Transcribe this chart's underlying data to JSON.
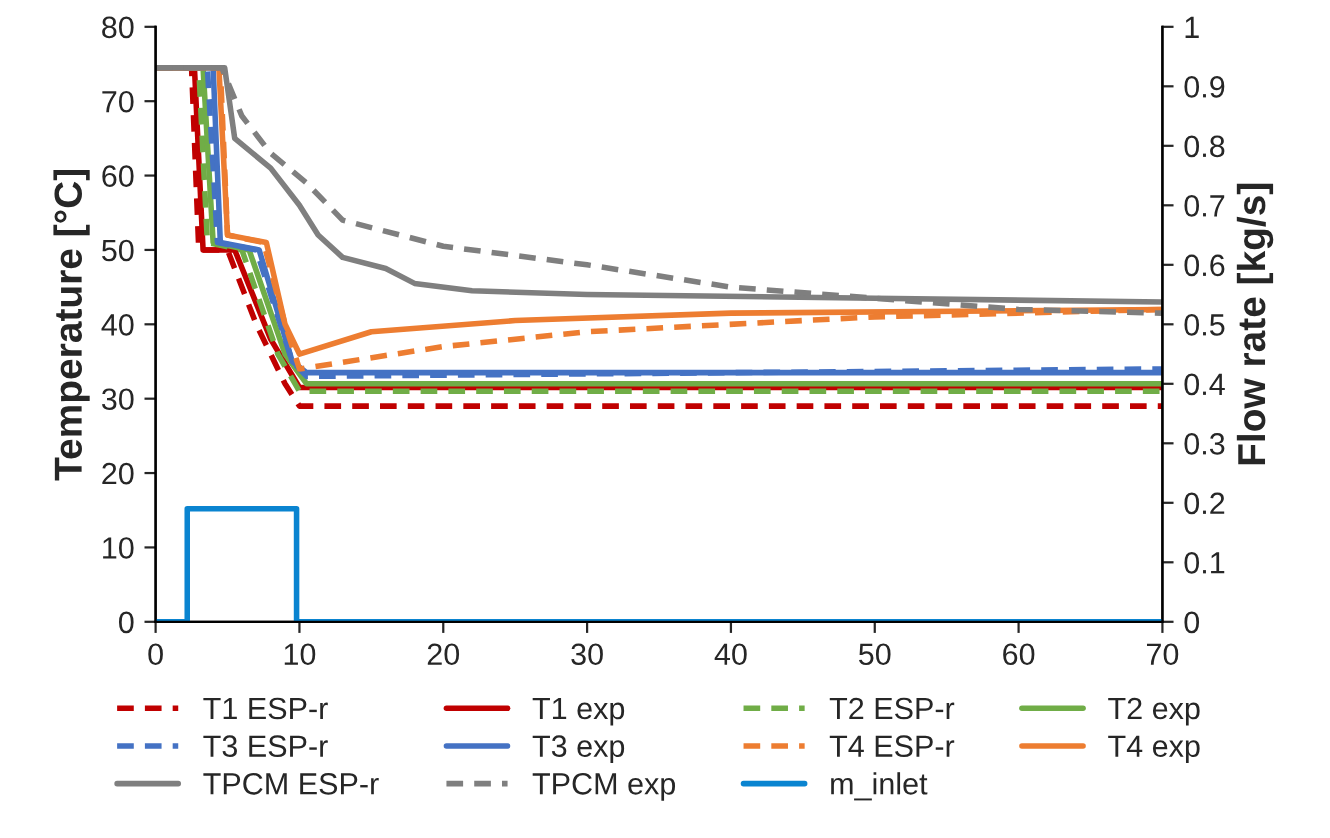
{
  "chart_data": {
    "type": "line",
    "ylabel": "Temperature [°C]",
    "y2label": "Flow rate [kg/s]",
    "xlim": [
      0,
      70
    ],
    "xticks": [
      0,
      10,
      20,
      30,
      40,
      50,
      60,
      70
    ],
    "ylim": [
      0,
      80
    ],
    "yticks": [
      0,
      10,
      20,
      30,
      40,
      50,
      60,
      70,
      80
    ],
    "y2lim": [
      0,
      1
    ],
    "y2ticks": [
      0,
      0.1,
      0.2,
      0.3,
      0.4,
      0.5,
      0.6,
      0.7,
      0.8,
      0.9,
      1
    ],
    "grid": false,
    "legend": "bottom",
    "marker": "none",
    "series": [
      {
        "name": "T1 ESP-r",
        "color": "#c00000",
        "line_style": "dashed",
        "x": [
          0,
          2.5,
          3,
          5,
          7,
          9,
          10,
          70
        ],
        "values": [
          74.5,
          74.5,
          50,
          50,
          40,
          32,
          29,
          29
        ]
      },
      {
        "name": "T1 exp",
        "color": "#c00000",
        "line_style": "solid",
        "x": [
          0,
          2.7,
          3.3,
          5.5,
          8,
          10,
          70
        ],
        "values": [
          74.5,
          74.5,
          50,
          50,
          38,
          31.5,
          31.5
        ]
      },
      {
        "name": "T2 ESP-r",
        "color": "#70ad47",
        "line_style": "dashed",
        "x": [
          0,
          3,
          3.6,
          6,
          8.5,
          10,
          70
        ],
        "values": [
          74.5,
          74.5,
          51,
          50,
          36,
          31,
          31
        ]
      },
      {
        "name": "T2 exp",
        "color": "#70ad47",
        "line_style": "solid",
        "x": [
          0,
          3.3,
          4,
          6.5,
          9,
          10.5,
          70
        ],
        "values": [
          74.5,
          74.5,
          51,
          50,
          36,
          32,
          32
        ]
      },
      {
        "name": "T3 ESP-r",
        "color": "#4472c4",
        "line_style": "dashed",
        "x": [
          0,
          3.6,
          4.3,
          7,
          9.5,
          10.5,
          70
        ],
        "values": [
          74.5,
          74.5,
          51,
          50,
          35,
          33,
          34
        ]
      },
      {
        "name": "T3 exp",
        "color": "#4472c4",
        "line_style": "solid",
        "x": [
          0,
          4,
          4.5,
          7.2,
          9.5,
          10.5,
          70
        ],
        "values": [
          74.5,
          74.5,
          51,
          50,
          35,
          33.5,
          33.5
        ]
      },
      {
        "name": "T4 ESP-r",
        "color": "#ed7d31",
        "line_style": "dashed",
        "x": [
          0,
          4.5,
          5,
          7.5,
          9,
          10,
          20,
          30,
          50,
          70
        ],
        "values": [
          74.5,
          74.5,
          52,
          51,
          40,
          34,
          37,
          39,
          41,
          42
        ]
      },
      {
        "name": "T4 exp",
        "color": "#ed7d31",
        "line_style": "solid",
        "x": [
          0,
          4.4,
          5,
          7.7,
          9,
          10,
          15,
          25,
          40,
          70
        ],
        "values": [
          74.5,
          74.5,
          52,
          51,
          40,
          36,
          39,
          40.5,
          41.5,
          42
        ]
      },
      {
        "name": "TPCM ESP-r",
        "color": "#7f7f7f",
        "line_style": "solid",
        "x": [
          0,
          4.8,
          5.5,
          8,
          10,
          11.3,
          13,
          16,
          18,
          22,
          30,
          50,
          70
        ],
        "values": [
          74.5,
          74.5,
          65,
          61,
          56,
          52,
          49,
          47.5,
          45.5,
          44.5,
          44,
          43.5,
          43
        ]
      },
      {
        "name": "TPCM exp",
        "color": "#7f7f7f",
        "line_style": "dashed",
        "x": [
          0,
          4.6,
          6,
          8,
          10.5,
          13,
          20,
          30,
          40,
          50,
          60,
          70
        ],
        "values": [
          74.5,
          74.5,
          68,
          63,
          59,
          54,
          50.5,
          48,
          45,
          43.5,
          42,
          41.5
        ]
      },
      {
        "name": "m_inlet",
        "color": "#0a84d0",
        "line_style": "solid",
        "axis": "y2",
        "x": [
          0,
          2.2,
          2.2,
          9.8,
          9.8,
          70
        ],
        "values": [
          0,
          0,
          0.19,
          0.19,
          0,
          0
        ]
      }
    ]
  }
}
